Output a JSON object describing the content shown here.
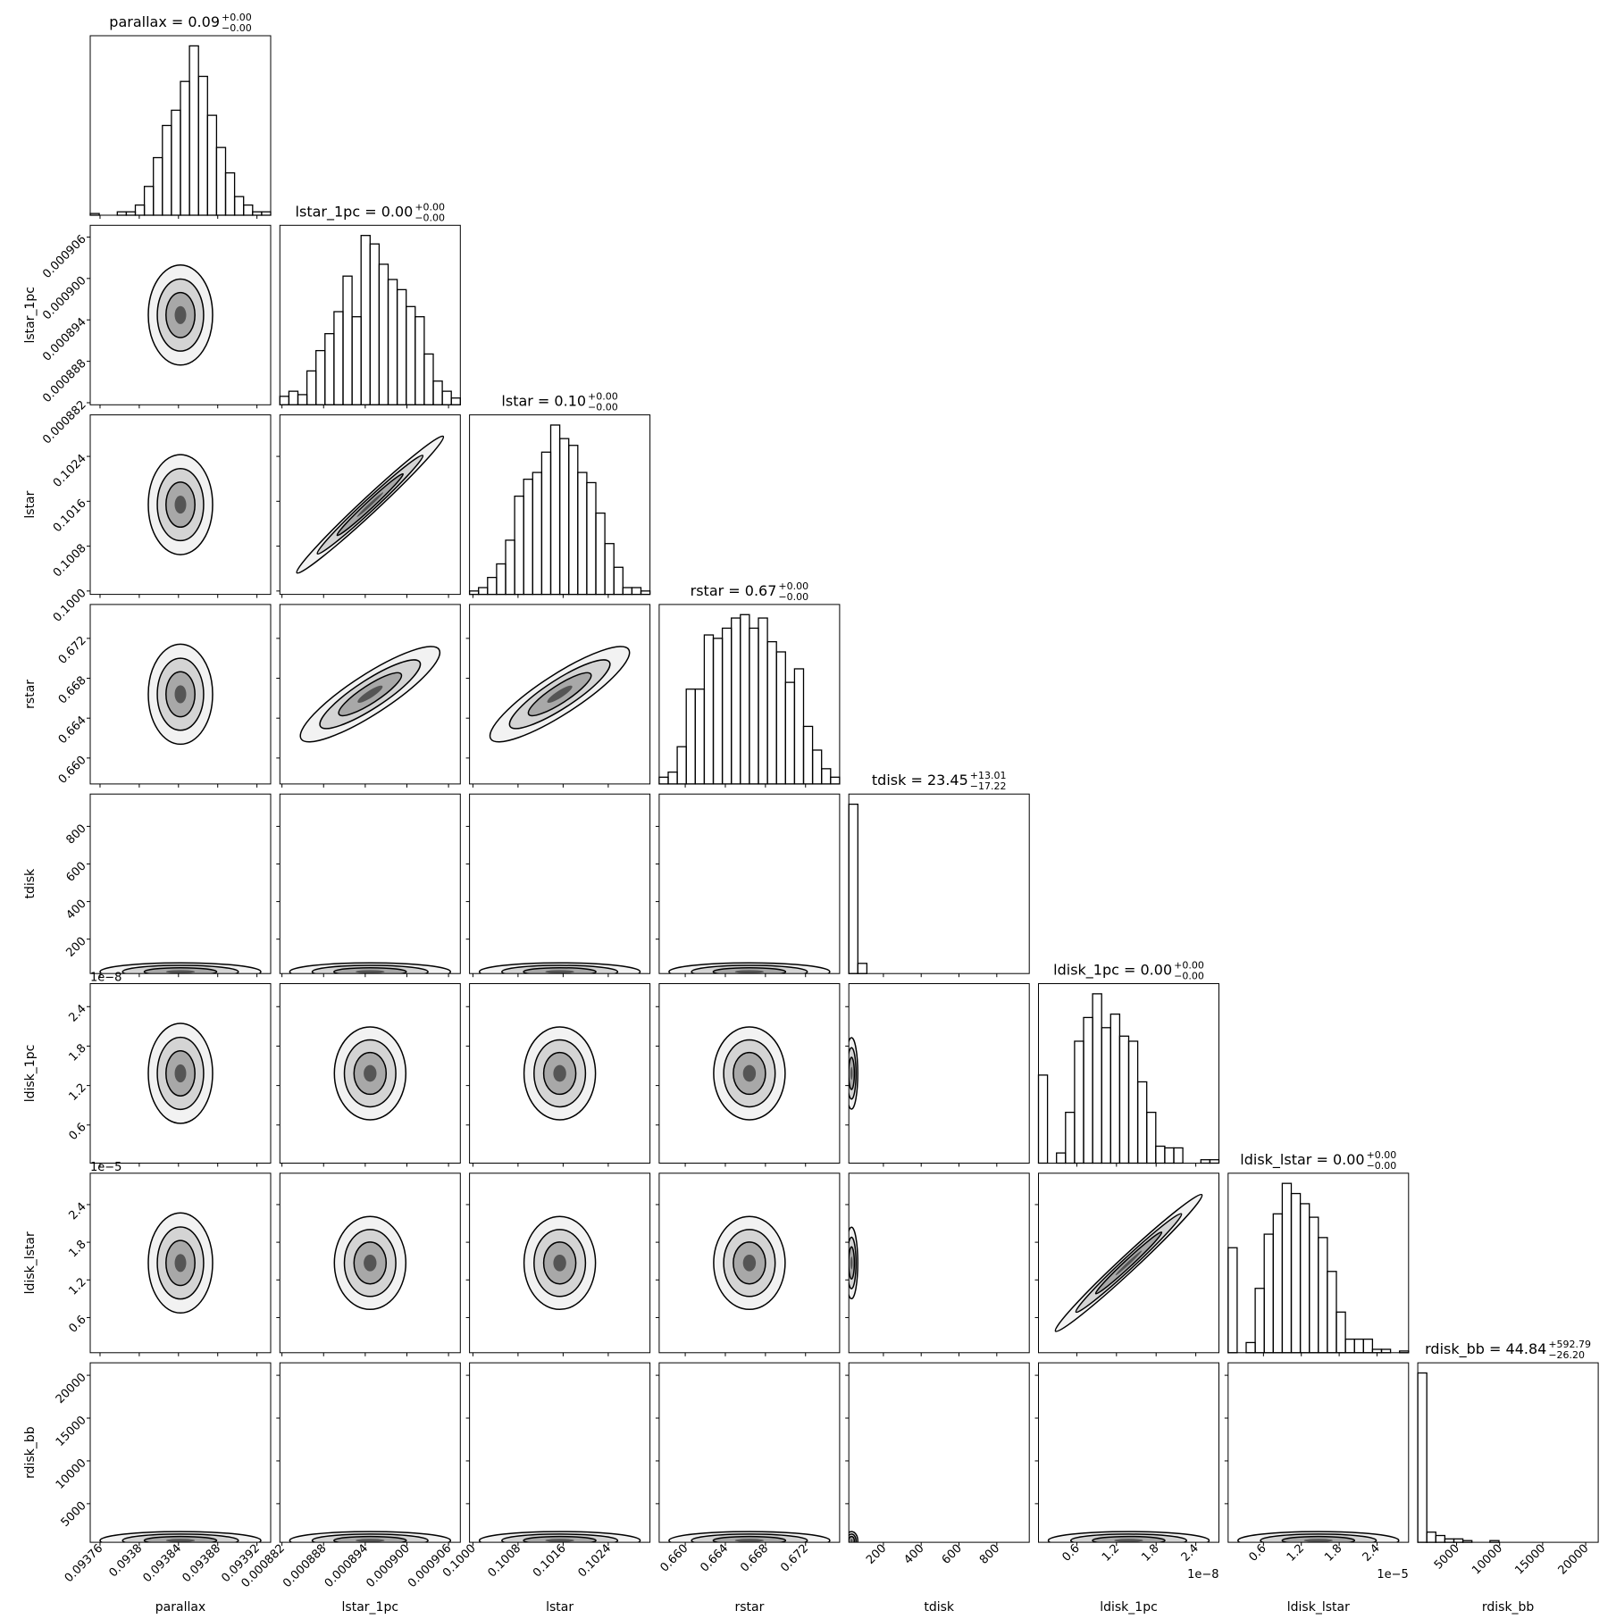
{
  "chart_data": {
    "type": "corner",
    "parameters": [
      {
        "name": "parallax",
        "title": "parallax = 0.09",
        "title_upper": "+0.00",
        "title_lower": "−0.00",
        "lim": [
          0.09375,
          0.093934
        ],
        "ticks": [
          0.09376,
          0.0938,
          0.09384,
          0.09388,
          0.09392
        ],
        "bins": [
          0.09375,
          0.0937592,
          0.0937684,
          0.0937776,
          0.0937868,
          0.093796,
          0.0938052,
          0.0938144,
          0.0938236,
          0.0938328,
          0.093842,
          0.0938512,
          0.0938604,
          0.0938696,
          0.0938788,
          0.093888,
          0.0938972,
          0.0939064,
          0.0939156,
          0.0939248,
          0.093934
        ],
        "counts": [
          1,
          0,
          0,
          2,
          2,
          6,
          17,
          34,
          53,
          62,
          79,
          100,
          82,
          59,
          40,
          25,
          11,
          6,
          2,
          2
        ]
      },
      {
        "name": "lstar_1pc",
        "title": "lstar_1pc = 0.00",
        "title_upper": "+0.00",
        "title_lower": "−0.00",
        "lim": [
          0.0008817,
          0.0009077
        ],
        "ticks": [
          0.000882,
          0.000888,
          0.000894,
          {
            "value": 0.0009,
            "label": "0.000900"
          },
          0.000906
        ],
        "bins": [
          0.0008817,
          0.000883,
          0.0008843,
          0.0008856,
          0.0008869,
          0.0008882,
          0.0008895,
          0.0008908,
          0.0008921,
          0.0008934,
          0.0008947,
          0.000896,
          0.0008973,
          0.0008986,
          0.0008999,
          0.0009012,
          0.0009025,
          0.0009038,
          0.0009051,
          0.0009064,
          0.0009077
        ],
        "counts": [
          5,
          8,
          6,
          20,
          32,
          42,
          55,
          76,
          52,
          100,
          95,
          83,
          74,
          68,
          58,
          52,
          30,
          14,
          8,
          4
        ]
      },
      {
        "name": "lstar",
        "title": "lstar = 0.10",
        "title_upper": "+0.00",
        "title_lower": "−0.00",
        "lim": [
          0.09994,
          0.10314
        ],
        "ticks": [
          {
            "value": 0.1,
            "label": "0.1000"
          },
          0.1008,
          0.1016,
          0.1024
        ],
        "bins": [
          0.09994,
          0.1001,
          0.10026,
          0.10042,
          0.10058,
          0.10074,
          0.1009,
          0.10106,
          0.10122,
          0.10138,
          0.10154,
          0.1017,
          0.10186,
          0.10202,
          0.10218,
          0.10234,
          0.1025,
          0.10266,
          0.10282,
          0.10298,
          0.10314
        ],
        "counts": [
          2,
          4,
          10,
          18,
          32,
          58,
          68,
          72,
          84,
          100,
          92,
          88,
          72,
          66,
          48,
          30,
          16,
          4,
          4,
          2
        ]
      },
      {
        "name": "rstar",
        "title": "rstar = 0.67",
        "title_upper": "+0.00",
        "title_lower": "−0.00",
        "lim": [
          0.6574,
          0.6754
        ],
        "ticks": [
          {
            "value": 0.66,
            "label": "0.660"
          },
          0.664,
          0.668,
          0.672
        ],
        "bins": [
          0.6574,
          0.6583,
          0.6592,
          0.6601,
          0.661,
          0.6619,
          0.6628,
          0.6637,
          0.6646,
          0.6655,
          0.6664,
          0.6673,
          0.6682,
          0.6691,
          0.67,
          0.6709,
          0.6718,
          0.6727,
          0.6736,
          0.6745,
          0.6754
        ],
        "counts": [
          4,
          7,
          22,
          56,
          56,
          88,
          86,
          92,
          98,
          100,
          92,
          98,
          84,
          78,
          60,
          68,
          34,
          20,
          9,
          4
        ]
      },
      {
        "name": "tdisk",
        "title": "tdisk = 23.45",
        "title_upper": "+13.01",
        "title_lower": "−17.22",
        "lim": [
          17,
          972
        ],
        "ticks": [
          200,
          400,
          600,
          800
        ],
        "bins": [
          17,
          64.75,
          112.5,
          160.25,
          208,
          255.75,
          303.5,
          351.25,
          399,
          446.75,
          494.5,
          542.25,
          590,
          637.75,
          685.5,
          733.25,
          781,
          828.75,
          876.5,
          924.25,
          972
        ],
        "counts": [
          100,
          6,
          0,
          0,
          0,
          0,
          0,
          0,
          0,
          0,
          0,
          0,
          0,
          0,
          0,
          0,
          0,
          0,
          0,
          0
        ]
      },
      {
        "name": "ldisk_1pc",
        "title": "ldisk_1pc = 0.00",
        "title_upper": "+0.00",
        "title_lower": "−0.00",
        "offset": "1e−8",
        "lim": [
          0.02,
          2.75
        ],
        "ticks": [
          0.6,
          1.2,
          1.8,
          2.4
        ],
        "bins": [
          0.02,
          0.1565,
          0.293,
          0.4295,
          0.566,
          0.7025,
          0.839,
          0.9755,
          1.112,
          1.2485,
          1.385,
          1.5215,
          1.658,
          1.7945,
          1.931,
          2.0675,
          2.204,
          2.3405,
          2.477,
          2.6135,
          2.75
        ],
        "counts": [
          52,
          0,
          6,
          30,
          72,
          86,
          100,
          80,
          88,
          75,
          72,
          48,
          30,
          10,
          9,
          9,
          0,
          0,
          2,
          2
        ]
      },
      {
        "name": "ldisk_lstar",
        "title": "ldisk_lstar = 0.00",
        "title_upper": "+0.00",
        "title_lower": "−0.00",
        "offset": "1e−5",
        "lim": [
          0.04,
          2.9
        ],
        "ticks": [
          0.6,
          1.2,
          1.8,
          2.4
        ],
        "bins": [
          0.04,
          0.183,
          0.326,
          0.469,
          0.612,
          0.755,
          0.898,
          1.041,
          1.184,
          1.327,
          1.47,
          1.613,
          1.756,
          1.899,
          2.042,
          2.185,
          2.328,
          2.471,
          2.614,
          2.757,
          2.9
        ],
        "counts": [
          62,
          0,
          6,
          38,
          70,
          82,
          100,
          94,
          88,
          80,
          68,
          48,
          24,
          8,
          8,
          8,
          2,
          2,
          0,
          1
        ]
      },
      {
        "name": "rdisk_bb",
        "title": "rdisk_bb = 44.84",
        "title_upper": "+592.79",
        "title_lower": "−26.20",
        "lim": [
          490,
          21460
        ],
        "ticks": [
          5000,
          10000,
          15000,
          20000
        ],
        "bins": [
          490,
          1538.5,
          2587,
          3635.5,
          4684,
          5732.5,
          6781,
          7829.5,
          8878,
          9926.5,
          10975,
          12023.5,
          13072,
          14120.5,
          15169,
          16217.5,
          17266,
          18314.5,
          19363,
          20411.5,
          21460
        ],
        "counts": [
          100,
          6,
          4,
          2,
          2,
          1,
          0,
          0,
          1,
          0,
          0,
          0,
          0,
          0,
          0,
          0,
          0,
          0,
          0,
          0
        ]
      }
    ]
  }
}
